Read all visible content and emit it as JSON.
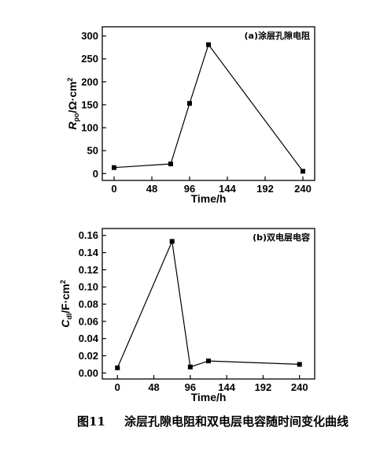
{
  "chart_data": [
    {
      "type": "line",
      "annotation": "(a)涂层孔隙电阻",
      "xlabel": "Time/h",
      "ylabel": {
        "main": "R",
        "sub": "po",
        "unit": "/Ω·cm",
        "sup": "2"
      },
      "x_ticks": [
        "0",
        "48",
        "96",
        "144",
        "192",
        "240"
      ],
      "y_ticks": [
        "0",
        "50",
        "100",
        "150",
        "200",
        "250",
        "300"
      ],
      "xlim": [
        -15,
        255
      ],
      "ylim": [
        -15,
        320
      ],
      "grid": false,
      "series": [
        {
          "x": [
            0,
            72,
            96,
            120,
            240
          ],
          "values": [
            13,
            21,
            153,
            281,
            5
          ]
        }
      ]
    },
    {
      "type": "line",
      "annotation": "(b)双电层电容",
      "xlabel": "Time/h",
      "ylabel": {
        "main": "C",
        "sub": "dl",
        "unit": "/F·cm",
        "sup": "2"
      },
      "x_ticks": [
        "0",
        "48",
        "96",
        "144",
        "192",
        "240"
      ],
      "y_ticks": [
        "0.00",
        "0.02",
        "0.04",
        "0.06",
        "0.08",
        "0.10",
        "0.12",
        "0.14",
        "0.16"
      ],
      "xlim": [
        -20,
        260
      ],
      "ylim": [
        -0.007,
        0.168
      ],
      "grid": false,
      "series": [
        {
          "x": [
            0,
            72,
            96,
            120,
            240
          ],
          "values": [
            0.006,
            0.153,
            0.007,
            0.014,
            0.01
          ]
        }
      ]
    }
  ],
  "caption": {
    "number": "图11",
    "text": "涂层孔隙电阻和双电层电容随时间变化曲线"
  }
}
